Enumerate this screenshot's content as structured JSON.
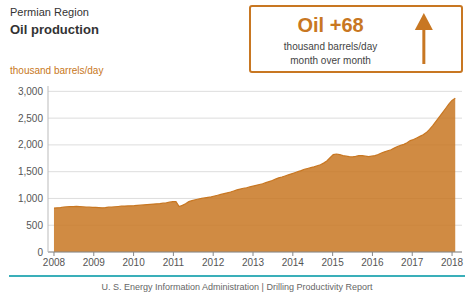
{
  "chart_data": {
    "type": "area",
    "title": "Oil production",
    "subtitle": "Permian Region",
    "ylabel": "thousand barrels/day",
    "annotations": [
      "Oil +68",
      "thousand barrels/day",
      "month over month",
      "U. S. Energy Information Administration  |  Drilling Productivity Report"
    ],
    "color": "#C87722",
    "grid": true,
    "xlim": [
      2007.85,
      2018.25
    ],
    "xticks": [
      2008,
      2009,
      2010,
      2011,
      2012,
      2013,
      2014,
      2015,
      2016,
      2017,
      2018
    ],
    "ylim": [
      0,
      3100
    ],
    "yticks": [
      0,
      500,
      {
        "value": 1000,
        "label": "1,000"
      },
      {
        "value": 1500,
        "label": "1,500"
      },
      {
        "value": 2000,
        "label": "2,000"
      },
      {
        "value": 2500,
        "label": "2,500"
      },
      {
        "value": 3000,
        "label": "3,000"
      }
    ],
    "x": [
      2008,
      2008.08064,
      2008.16128,
      2008.24192,
      2008.32256,
      2008.4032,
      2008.48384,
      2008.56448,
      2008.64512,
      2008.72576,
      2008.8064,
      2008.88704,
      2008.96768,
      2009.04832,
      2009.12896,
      2009.2096,
      2009.29024,
      2009.37088,
      2009.45152,
      2009.53216,
      2009.6128,
      2009.69344,
      2009.77408,
      2009.85472,
      2009.93536,
      2010.016,
      2010.09664,
      2010.17728,
      2010.25792,
      2010.33856,
      2010.4192,
      2010.49984,
      2010.58048,
      2010.66112,
      2010.74176,
      2010.8224,
      2010.90304,
      2010.98368,
      2011.06432,
      2011.14496,
      2011.2256,
      2011.30624,
      2011.38688,
      2011.46752,
      2011.54816,
      2011.6288,
      2011.70944,
      2011.79008,
      2011.87072,
      2011.95136,
      2012.032,
      2012.11264,
      2012.19328,
      2012.27392,
      2012.35456,
      2012.4352,
      2012.51584,
      2012.59648,
      2012.67712,
      2012.75776,
      2012.8384,
      2012.91904,
      2012.99968,
      2013.08032,
      2013.16096,
      2013.2416,
      2013.32224,
      2013.40288,
      2013.48352,
      2013.56416,
      2013.6448,
      2013.72544,
      2013.80608,
      2013.88672,
      2013.96736,
      2014.048,
      2014.12864,
      2014.20928,
      2014.28992,
      2014.37056,
      2014.4512,
      2014.53184,
      2014.61248,
      2014.69312,
      2014.77376,
      2014.8544,
      2014.93504,
      2015.01568,
      2015.09632,
      2015.17696,
      2015.2576,
      2015.33824,
      2015.41888,
      2015.49952,
      2015.58016,
      2015.6608,
      2015.74144,
      2015.82208,
      2015.90272,
      2015.98336,
      2016.064,
      2016.14464,
      2016.22528,
      2016.30592,
      2016.38656,
      2016.4672,
      2016.54784,
      2016.62848,
      2016.70912,
      2016.78976,
      2016.8704,
      2016.95104,
      2017.03168,
      2017.11232,
      2017.19296,
      2017.2736,
      2017.35424,
      2017.43488,
      2017.51552,
      2017.59616,
      2017.6768,
      2017.75744,
      2017.83808,
      2017.91872,
      2017.99936,
      2018.08
    ],
    "values": [
      820,
      825,
      830,
      840,
      845,
      850,
      848,
      852,
      848,
      845,
      840,
      838,
      835,
      832,
      828,
      825,
      830,
      838,
      840,
      845,
      850,
      855,
      858,
      860,
      862,
      865,
      870,
      875,
      880,
      885,
      890,
      895,
      900,
      905,
      912,
      920,
      930,
      940,
      942,
      850,
      870,
      900,
      940,
      960,
      975,
      990,
      1000,
      1010,
      1020,
      1030,
      1045,
      1060,
      1075,
      1090,
      1105,
      1120,
      1140,
      1160,
      1175,
      1190,
      1200,
      1215,
      1230,
      1245,
      1260,
      1275,
      1295,
      1315,
      1335,
      1360,
      1385,
      1400,
      1420,
      1440,
      1460,
      1480,
      1500,
      1520,
      1545,
      1560,
      1575,
      1590,
      1610,
      1630,
      1660,
      1700,
      1760,
      1820,
      1830,
      1820,
      1800,
      1790,
      1780,
      1775,
      1785,
      1800,
      1800,
      1790,
      1780,
      1790,
      1800,
      1820,
      1850,
      1870,
      1890,
      1910,
      1940,
      1970,
      1990,
      2010,
      2040,
      2080,
      2100,
      2130,
      2160,
      2190,
      2230,
      2290,
      2360,
      2440,
      2520,
      2600,
      2680,
      2760,
      2830,
      2870
    ]
  }
}
